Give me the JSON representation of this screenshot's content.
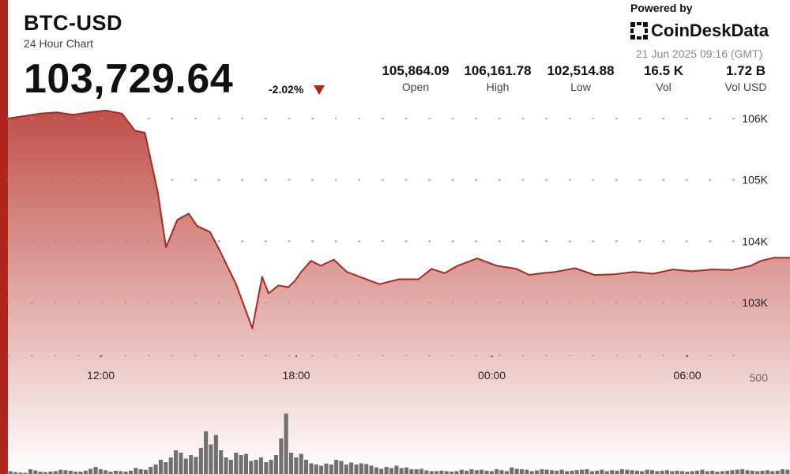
{
  "header": {
    "pair": "BTC-USD",
    "subtitle": "24 Hour Chart",
    "price": "103,729.64",
    "change": "-2.02%",
    "change_direction_icon": "down-triangle-icon",
    "powered_by": "Powered by",
    "brand": "CoinDeskData",
    "timestamp": "21 Jun 2025 09:16 (GMT)"
  },
  "stats": [
    {
      "value": "105,864.09",
      "label": "Open"
    },
    {
      "value": "106,161.78",
      "label": "High"
    },
    {
      "value": "102,514.88",
      "label": "Low"
    },
    {
      "value": "16.5 K",
      "label": "Vol"
    },
    {
      "value": "1.72 B",
      "label": "Vol USD"
    }
  ],
  "colors": {
    "accent": "#b0251c",
    "volume_bar": "#707070",
    "grid_dot": "#999999",
    "area_top": "#c0504a",
    "area_bottom": "#ffffff"
  },
  "chart_data": {
    "type": "line",
    "title": "BTC-USD",
    "subtitle": "24 Hour Chart",
    "x_ticks": [
      "12:00",
      "18:00",
      "00:00",
      "06:00"
    ],
    "x_tick_hours": [
      2.85,
      8.85,
      14.85,
      20.85
    ],
    "y_ticks": [
      106000,
      105000,
      104000,
      103000
    ],
    "y_tick_labels": [
      "106K",
      "105K",
      "104K",
      "103K"
    ],
    "ylim": [
      102514.88,
      106161.78
    ],
    "grid": true,
    "legend": "none",
    "price_series": {
      "hours": [
        0,
        0.5,
        1,
        1.5,
        2,
        2.5,
        3,
        3.5,
        3.9,
        4.2,
        4.6,
        4.85,
        5.2,
        5.55,
        5.8,
        6.2,
        6.5,
        7,
        7.5,
        7.8,
        8,
        8.3,
        8.6,
        8.8,
        9.0,
        9.3,
        9.6,
        10,
        10.4,
        10.8,
        11.4,
        12,
        12.6,
        13,
        13.4,
        13.8,
        14.4,
        15,
        15.6,
        16,
        16.4,
        16.8,
        17.4,
        18,
        18.6,
        19.2,
        19.8,
        20.4,
        21,
        21.6,
        22.2,
        22.8,
        23.1,
        23.5,
        24
      ],
      "values": [
        106000,
        106040,
        106080,
        106100,
        106060,
        106100,
        106130,
        106080,
        105800,
        105770,
        104800,
        103900,
        104350,
        104450,
        104250,
        104150,
        103850,
        103300,
        102580,
        103420,
        103150,
        103280,
        103250,
        103350,
        103500,
        103680,
        103600,
        103700,
        103500,
        103420,
        103300,
        103380,
        103380,
        103550,
        103480,
        103600,
        103720,
        103600,
        103550,
        103450,
        103480,
        103500,
        103560,
        103450,
        103460,
        103500,
        103470,
        103540,
        103510,
        103540,
        103530,
        103600,
        103680,
        103730,
        103730
      ]
    },
    "volume_axis_tick": "500",
    "volume_series": {
      "values": [
        12,
        8,
        6,
        5,
        20,
        15,
        10,
        8,
        10,
        12,
        18,
        16,
        14,
        10,
        10,
        14,
        22,
        30,
        20,
        16,
        10,
        14,
        12,
        10,
        14,
        26,
        20,
        18,
        30,
        40,
        60,
        50,
        70,
        100,
        90,
        65,
        80,
        72,
        110,
        180,
        125,
        165,
        100,
        70,
        60,
        90,
        80,
        85,
        55,
        60,
        70,
        50,
        60,
        80,
        150,
        255,
        90,
        70,
        85,
        60,
        45,
        40,
        35,
        44,
        40,
        60,
        55,
        40,
        48,
        40,
        45,
        42,
        35,
        28,
        22,
        30,
        25,
        35,
        25,
        28,
        20,
        20,
        22,
        15,
        12,
        12,
        14,
        12,
        10,
        12,
        18,
        14,
        20,
        16,
        18,
        14,
        12,
        20,
        16,
        12,
        28,
        22,
        20,
        18,
        12,
        15,
        20,
        18,
        16,
        14,
        18,
        12,
        14,
        16,
        18,
        20,
        12,
        14,
        18,
        12,
        16,
        14,
        20,
        18,
        16,
        14,
        12,
        18,
        16,
        12,
        14,
        16,
        12,
        14,
        12,
        10,
        12,
        14,
        18,
        12,
        14,
        10,
        12,
        14,
        16,
        18,
        20,
        16,
        14,
        12,
        14,
        16,
        12,
        14,
        20,
        18
      ]
    }
  }
}
